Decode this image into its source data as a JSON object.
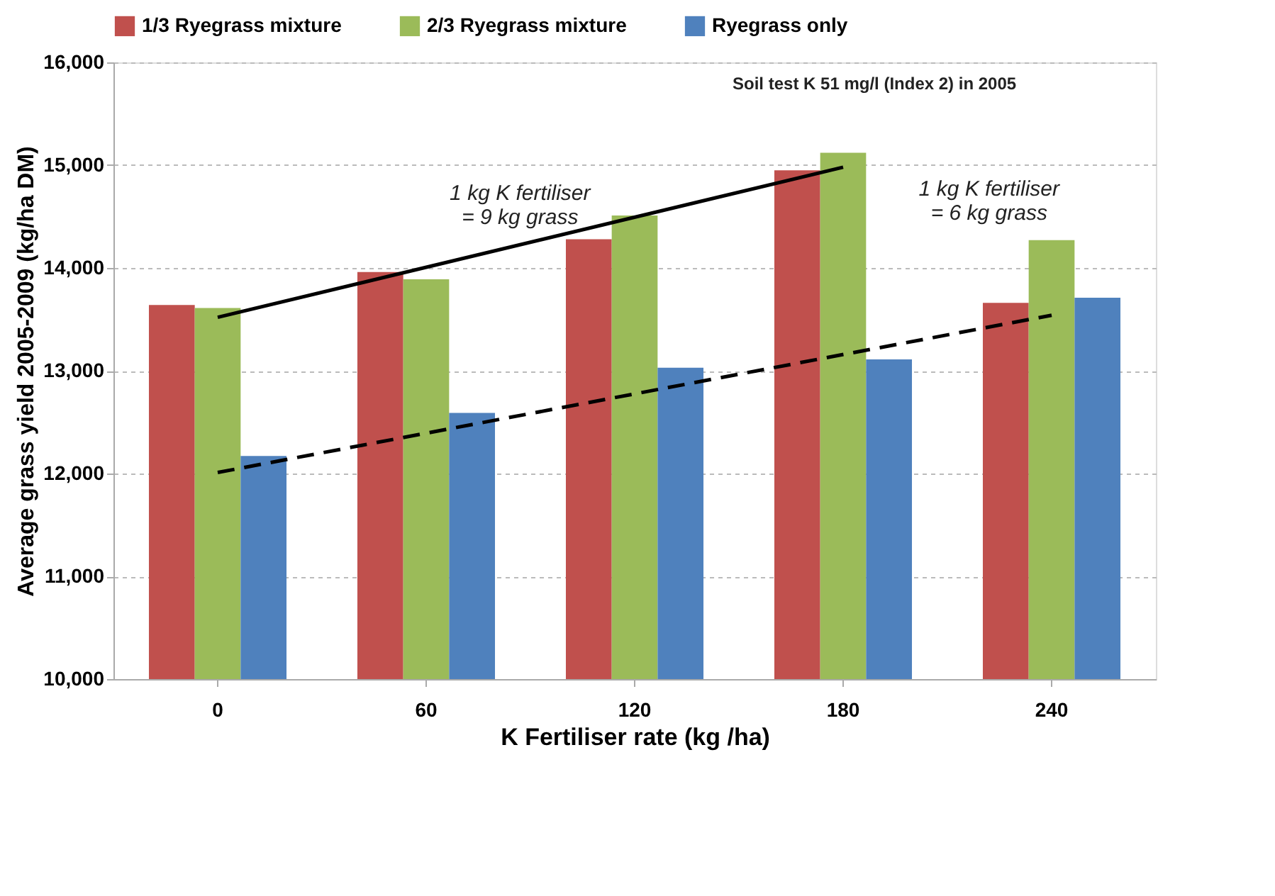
{
  "chart_data": {
    "type": "bar",
    "xlabel": "K Fertiliser rate (kg /ha)",
    "ylabel": "Average grass yield 2005-2009 (kg/ha DM)",
    "categories": [
      "0",
      "60",
      "120",
      "180",
      "240"
    ],
    "series": [
      {
        "name": "1/3 Ryegrass mixture",
        "color": "#c0504d",
        "values": [
          13640,
          13960,
          14280,
          14950,
          13660
        ]
      },
      {
        "name": "2/3 Ryegrass mixture",
        "color": "#9bbb59",
        "values": [
          13610,
          13890,
          14510,
          15120,
          14270
        ]
      },
      {
        "name": "Ryegrass only",
        "color": "#4f81bd",
        "values": [
          12170,
          12590,
          13030,
          13110,
          13710
        ]
      },
      {
        "type": "line",
        "color": "#000000",
        "line_style": "solid",
        "x": [
          "0",
          "180"
        ],
        "values": [
          13520,
          14980
        ]
      },
      {
        "type": "line",
        "color": "#000000",
        "line_style": "dashed",
        "x": [
          "0",
          "240"
        ],
        "values": [
          12010,
          13540
        ]
      }
    ],
    "ylim": [
      10000,
      16000
    ],
    "yticks": [
      {
        "value": 10000,
        "label": "10,000"
      },
      {
        "value": 11000,
        "label": "11,000"
      },
      {
        "value": 12000,
        "label": "12,000"
      },
      {
        "value": 13000,
        "label": "13,000"
      },
      {
        "value": 14000,
        "label": "14,000"
      },
      {
        "value": 15000,
        "label": "15,000"
      },
      {
        "value": 16000,
        "label": "16,000"
      }
    ],
    "grid": "y",
    "legend": "top",
    "annotations": [
      "Soil test K 51 mg/l (Index 2) in 2005",
      "1 kg K fertiliser\n= 9 kg grass",
      "1 kg K fertiliser\n= 6 kg grass"
    ]
  }
}
